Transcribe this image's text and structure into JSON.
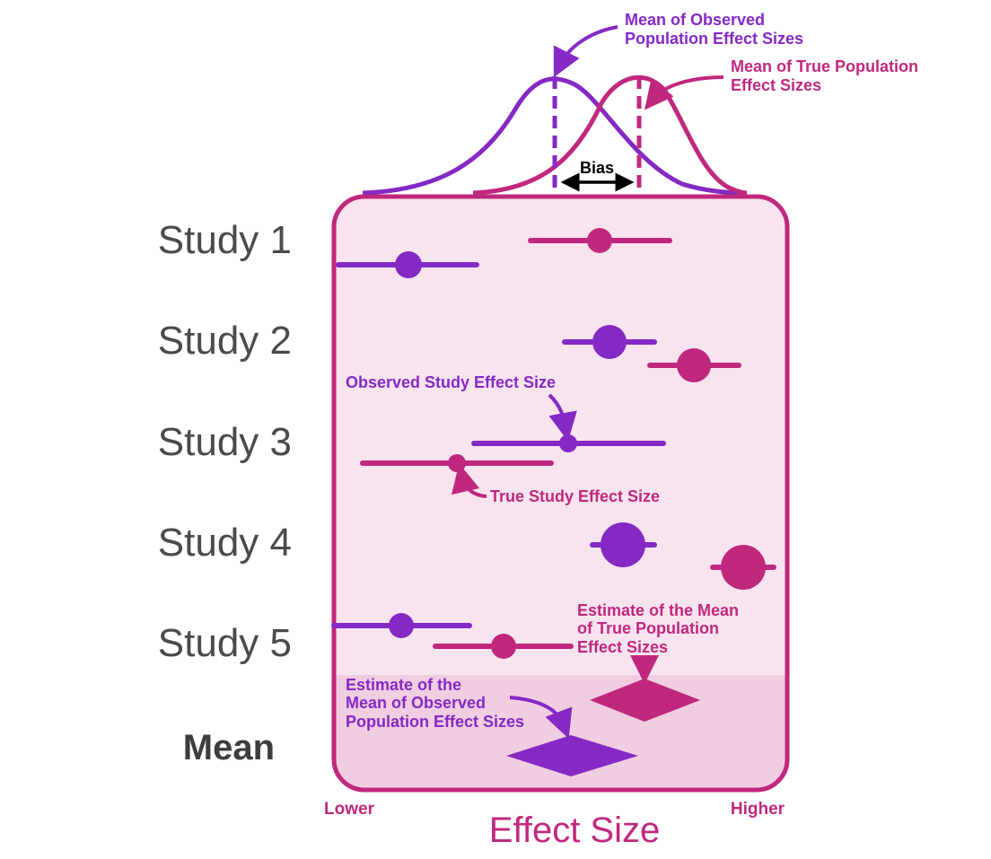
{
  "colors": {
    "observed": "#8429c4",
    "true": "#c0287e",
    "panel_fill": "#f8e4ef",
    "mean_band_fill": "#f1cde1",
    "label_gray": "#4a4a4a",
    "black": "#000000"
  },
  "top": {
    "observed_mean_label_1": "Mean of Observed",
    "observed_mean_label_2": "Population Effect Sizes",
    "true_mean_label_1": "Mean of True Population",
    "true_mean_label_2": "Effect Sizes",
    "bias_label": "Bias"
  },
  "studies": [
    {
      "label": "Study 1"
    },
    {
      "label": "Study 2"
    },
    {
      "label": "Study 3"
    },
    {
      "label": "Study 4"
    },
    {
      "label": "Study 5"
    }
  ],
  "mean_label": "Mean",
  "annotations": {
    "observed_study": "Observed Study Effect Size",
    "true_study": "True Study Effect Size",
    "est_true_1": "Estimate of the Mean",
    "est_true_2": "of True Population",
    "est_true_3": "Effect Sizes",
    "est_obs_1": "Estimate of the",
    "est_obs_2": "Mean of Observed",
    "est_obs_3": "Population Effect Sizes"
  },
  "axis": {
    "lower": "Lower",
    "higher": "Higher",
    "title": "Effect Size"
  }
}
